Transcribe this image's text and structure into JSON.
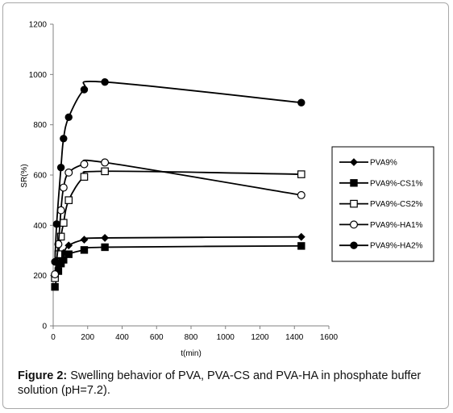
{
  "chart_data": {
    "type": "line",
    "title": "",
    "xlabel": "t(min)",
    "ylabel": "SR(%)",
    "xlim": [
      0,
      1600
    ],
    "ylim": [
      0,
      1200
    ],
    "xticks": [
      0,
      200,
      400,
      600,
      800,
      1000,
      1200,
      1400,
      1600
    ],
    "yticks": [
      0,
      200,
      400,
      600,
      800,
      1000,
      1200
    ],
    "grid": false,
    "legend_position": "right",
    "series": [
      {
        "name": "PVA9%",
        "marker": "diamond-filled",
        "x": [
          10,
          30,
          45,
          60,
          90,
          180,
          300,
          1440
        ],
        "y": [
          195,
          245,
          270,
          290,
          320,
          343,
          350,
          354
        ]
      },
      {
        "name": "PVA9%-CS1%",
        "marker": "square-filled",
        "x": [
          10,
          30,
          45,
          60,
          90,
          180,
          300,
          1440
        ],
        "y": [
          155,
          218,
          248,
          263,
          285,
          302,
          313,
          318
        ]
      },
      {
        "name": "PVA9%-CS2%",
        "marker": "square-open",
        "x": [
          10,
          30,
          45,
          60,
          90,
          180,
          300,
          1440
        ],
        "y": [
          190,
          285,
          355,
          410,
          500,
          593,
          615,
          603
        ]
      },
      {
        "name": "PVA9%-HA1%",
        "marker": "circle-open",
        "x": [
          10,
          30,
          45,
          60,
          90,
          180,
          300,
          1440
        ],
        "y": [
          205,
          325,
          460,
          550,
          610,
          643,
          650,
          520
        ]
      },
      {
        "name": "PVA9%-HA2%",
        "marker": "circle-filled",
        "x": [
          10,
          20,
          45,
          60,
          90,
          180,
          300,
          1440
        ],
        "y": [
          255,
          405,
          630,
          745,
          830,
          940,
          970,
          888
        ]
      }
    ]
  },
  "caption": {
    "label": "Figure 2:",
    "text": " Swelling behavior of PVA, PVA-CS and PVA-HA in phosphate buffer solution (pH=7.2)."
  }
}
